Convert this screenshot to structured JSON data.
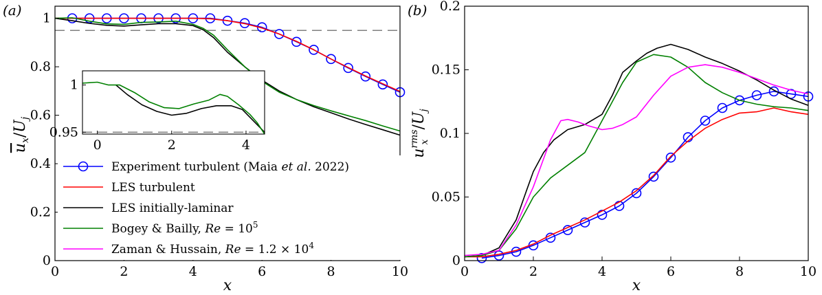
{
  "chart_data": [
    {
      "type": "line",
      "panel_label": "(a)",
      "xlabel": "x",
      "ylabel": "ū_x / U_j",
      "xlim": [
        0,
        10
      ],
      "ylim": [
        0,
        1.05
      ],
      "xticks": [
        "0",
        "2",
        "4",
        "6",
        "8",
        "10"
      ],
      "yticks": [
        "0",
        "0.2",
        "0.4",
        "0.6",
        "0.8",
        "1"
      ],
      "reference_line": {
        "y": 0.95,
        "style": "dashed",
        "color": "#7f7f7f"
      },
      "series": [
        {
          "name": "Experiment turbulent (Maia et al. 2022)",
          "color": "#0000ff",
          "marker": "circle",
          "x": [
            0.5,
            1,
            1.5,
            2,
            2.5,
            3,
            3.5,
            4,
            4.5,
            5,
            5.5,
            6,
            6.5,
            7,
            7.5,
            8,
            8.5,
            9,
            9.5,
            10
          ],
          "y": [
            1.0,
            1.0,
            1.0,
            1.0,
            1.0,
            1.0,
            1.0,
            1.0,
            1.0,
            0.99,
            0.98,
            0.963,
            0.935,
            0.903,
            0.87,
            0.832,
            0.795,
            0.76,
            0.727,
            0.695
          ]
        },
        {
          "name": "LES turbulent",
          "color": "#ff0000",
          "x": [
            0,
            0.5,
            1,
            1.5,
            2,
            2.5,
            3,
            3.5,
            4,
            4.5,
            5,
            5.5,
            6,
            6.5,
            7,
            7.5,
            8,
            8.5,
            9,
            9.5,
            10
          ],
          "y": [
            1.0,
            1.0,
            1.0,
            1.0,
            1.0,
            1.0,
            1.0,
            1.0,
            1.0,
            0.998,
            0.99,
            0.978,
            0.96,
            0.935,
            0.905,
            0.87,
            0.832,
            0.797,
            0.762,
            0.73,
            0.698
          ]
        },
        {
          "name": "LES initially-laminar",
          "color": "#000000",
          "x": [
            0,
            0.5,
            1,
            1.5,
            2,
            2.5,
            3,
            3.5,
            4,
            4.3,
            4.6,
            5,
            5.5,
            6,
            6.5,
            7,
            7.5,
            8,
            8.5,
            9,
            9.5,
            10
          ],
          "y": [
            1.0,
            0.99,
            0.979,
            0.971,
            0.968,
            0.973,
            0.978,
            0.978,
            0.97,
            0.952,
            0.92,
            0.86,
            0.8,
            0.745,
            0.7,
            0.665,
            0.635,
            0.61,
            0.585,
            0.562,
            0.54,
            0.518
          ]
        },
        {
          "name": "Bogey & Bailly, Re = 10^5",
          "color": "#008000",
          "x": [
            0,
            0.5,
            1,
            1.5,
            2,
            2.5,
            3,
            3.5,
            4,
            4.3,
            4.6,
            5,
            5.5,
            6,
            6.5,
            7,
            7.5,
            8,
            8.5,
            9,
            9.5,
            10
          ],
          "y": [
            1.0,
            1.002,
            0.988,
            0.977,
            0.975,
            0.983,
            0.985,
            0.988,
            0.975,
            0.958,
            0.93,
            0.87,
            0.8,
            0.74,
            0.695,
            0.665,
            0.64,
            0.618,
            0.598,
            0.578,
            0.556,
            0.535
          ]
        }
      ],
      "legend": [
        {
          "label": "Experiment turbulent (Maia ",
          "label_italic": "et al.",
          "label_tail": " 2022)",
          "color": "#0000ff"
        },
        {
          "label": "LES turbulent",
          "color": "#ff0000"
        },
        {
          "label": "LES initially-laminar",
          "color": "#000000"
        },
        {
          "label": "Bogey & Bailly, ",
          "label_italic": "Re",
          "label_tail": " = 10",
          "sup": "5",
          "color": "#008000"
        },
        {
          "label": "Zaman & Hussain, ",
          "label_italic": "Re",
          "label_tail": " = 1.2 × 10",
          "sup": "4",
          "color": "#ff00ff"
        }
      ],
      "inset": {
        "xlim": [
          -0.4,
          4.5
        ],
        "ylim": [
          0.948,
          1.015
        ],
        "xticks": [
          "0",
          "2",
          "4"
        ],
        "yticks": [
          "0.95",
          "1"
        ],
        "reference_line": {
          "y": 0.95,
          "style": "dashed"
        },
        "series": [
          {
            "name": "LES initially-laminar",
            "color": "#000000",
            "x": [
              0.5,
              0.8,
              1.2,
              1.6,
              2,
              2.4,
              2.8,
              3.2,
              3.6,
              3.9,
              4.1,
              4.3,
              4.5
            ],
            "y": [
              1.0,
              0.99,
              0.979,
              0.972,
              0.968,
              0.97,
              0.975,
              0.978,
              0.978,
              0.974,
              0.966,
              0.958,
              0.95
            ]
          },
          {
            "name": "Bogey & Bailly",
            "color": "#008000",
            "x": [
              -0.4,
              0,
              0.3,
              0.6,
              1,
              1.4,
              1.8,
              2.2,
              2.6,
              3.0,
              3.3,
              3.5,
              3.8,
              4.1,
              4.3,
              4.5
            ],
            "y": [
              1.002,
              1.003,
              1.0,
              1.0,
              0.992,
              0.982,
              0.976,
              0.975,
              0.98,
              0.984,
              0.99,
              0.988,
              0.979,
              0.969,
              0.96,
              0.948
            ]
          }
        ]
      }
    },
    {
      "type": "line",
      "panel_label": "(b)",
      "xlabel": "x",
      "ylabel": "u_x^rms / U_j",
      "xlim": [
        0,
        10
      ],
      "ylim": [
        0,
        0.2
      ],
      "xticks": [
        "0",
        "2",
        "4",
        "6",
        "8",
        "10"
      ],
      "yticks": [
        "0",
        "0.05",
        "0.1",
        "0.15",
        "0.2"
      ],
      "series": [
        {
          "name": "Experiment turbulent",
          "color": "#0000ff",
          "marker": "circle",
          "x": [
            0.5,
            1,
            1.5,
            2,
            2.5,
            3,
            3.5,
            4,
            4.5,
            5,
            5.5,
            6,
            6.5,
            7,
            7.5,
            8,
            8.5,
            9,
            9.5,
            10
          ],
          "y": [
            0.002,
            0.004,
            0.007,
            0.012,
            0.018,
            0.024,
            0.03,
            0.036,
            0.043,
            0.053,
            0.066,
            0.081,
            0.097,
            0.11,
            0.12,
            0.126,
            0.13,
            0.133,
            0.131,
            0.129
          ]
        },
        {
          "name": "LES turbulent",
          "color": "#ff0000",
          "x": [
            0,
            0.5,
            1,
            1.5,
            2,
            2.5,
            3,
            3.5,
            4,
            4.5,
            5,
            5.5,
            6,
            6.5,
            7,
            7.5,
            8,
            8.5,
            9,
            9.5,
            10
          ],
          "y": [
            0.003,
            0.003,
            0.005,
            0.008,
            0.013,
            0.02,
            0.026,
            0.032,
            0.039,
            0.046,
            0.055,
            0.067,
            0.082,
            0.094,
            0.104,
            0.111,
            0.116,
            0.117,
            0.12,
            0.117,
            0.115
          ]
        },
        {
          "name": "LES initially-laminar",
          "color": "#000000",
          "x": [
            0,
            0.5,
            1,
            1.5,
            1.8,
            2,
            2.3,
            2.6,
            3,
            3.5,
            4,
            4.3,
            4.6,
            5,
            5.3,
            5.6,
            6,
            6.5,
            7,
            7.5,
            8,
            8.5,
            9,
            9.5,
            10
          ],
          "y": [
            0.003,
            0.004,
            0.01,
            0.032,
            0.055,
            0.07,
            0.085,
            0.095,
            0.103,
            0.107,
            0.115,
            0.13,
            0.148,
            0.157,
            0.163,
            0.167,
            0.17,
            0.166,
            0.16,
            0.155,
            0.149,
            0.142,
            0.134,
            0.127,
            0.122
          ]
        },
        {
          "name": "Bogey & Bailly, Re = 10^5",
          "color": "#008000",
          "x": [
            0,
            0.5,
            1,
            1.5,
            2,
            2.5,
            3,
            3.5,
            4,
            4.3,
            4.6,
            5,
            5.5,
            6,
            6.5,
            7,
            7.5,
            8,
            8.5,
            9,
            9.5,
            10
          ],
          "y": [
            0.003,
            0.004,
            0.008,
            0.025,
            0.05,
            0.065,
            0.075,
            0.085,
            0.11,
            0.125,
            0.14,
            0.156,
            0.162,
            0.16,
            0.152,
            0.14,
            0.132,
            0.126,
            0.123,
            0.121,
            0.12,
            0.118
          ]
        },
        {
          "name": "Zaman & Hussain, Re = 1.2 × 10^4",
          "color": "#ff00ff",
          "x": [
            0,
            0.5,
            1,
            1.5,
            2,
            2.5,
            2.8,
            3,
            3.3,
            3.6,
            4,
            4.3,
            4.6,
            5,
            5.5,
            6,
            6.5,
            7,
            7.5,
            8,
            8.5,
            9,
            9.5,
            10
          ],
          "y": [
            0.004,
            0.005,
            0.008,
            0.028,
            0.058,
            0.095,
            0.11,
            0.111,
            0.109,
            0.106,
            0.103,
            0.104,
            0.107,
            0.113,
            0.13,
            0.145,
            0.152,
            0.154,
            0.152,
            0.148,
            0.143,
            0.138,
            0.134,
            0.131
          ]
        }
      ]
    }
  ]
}
